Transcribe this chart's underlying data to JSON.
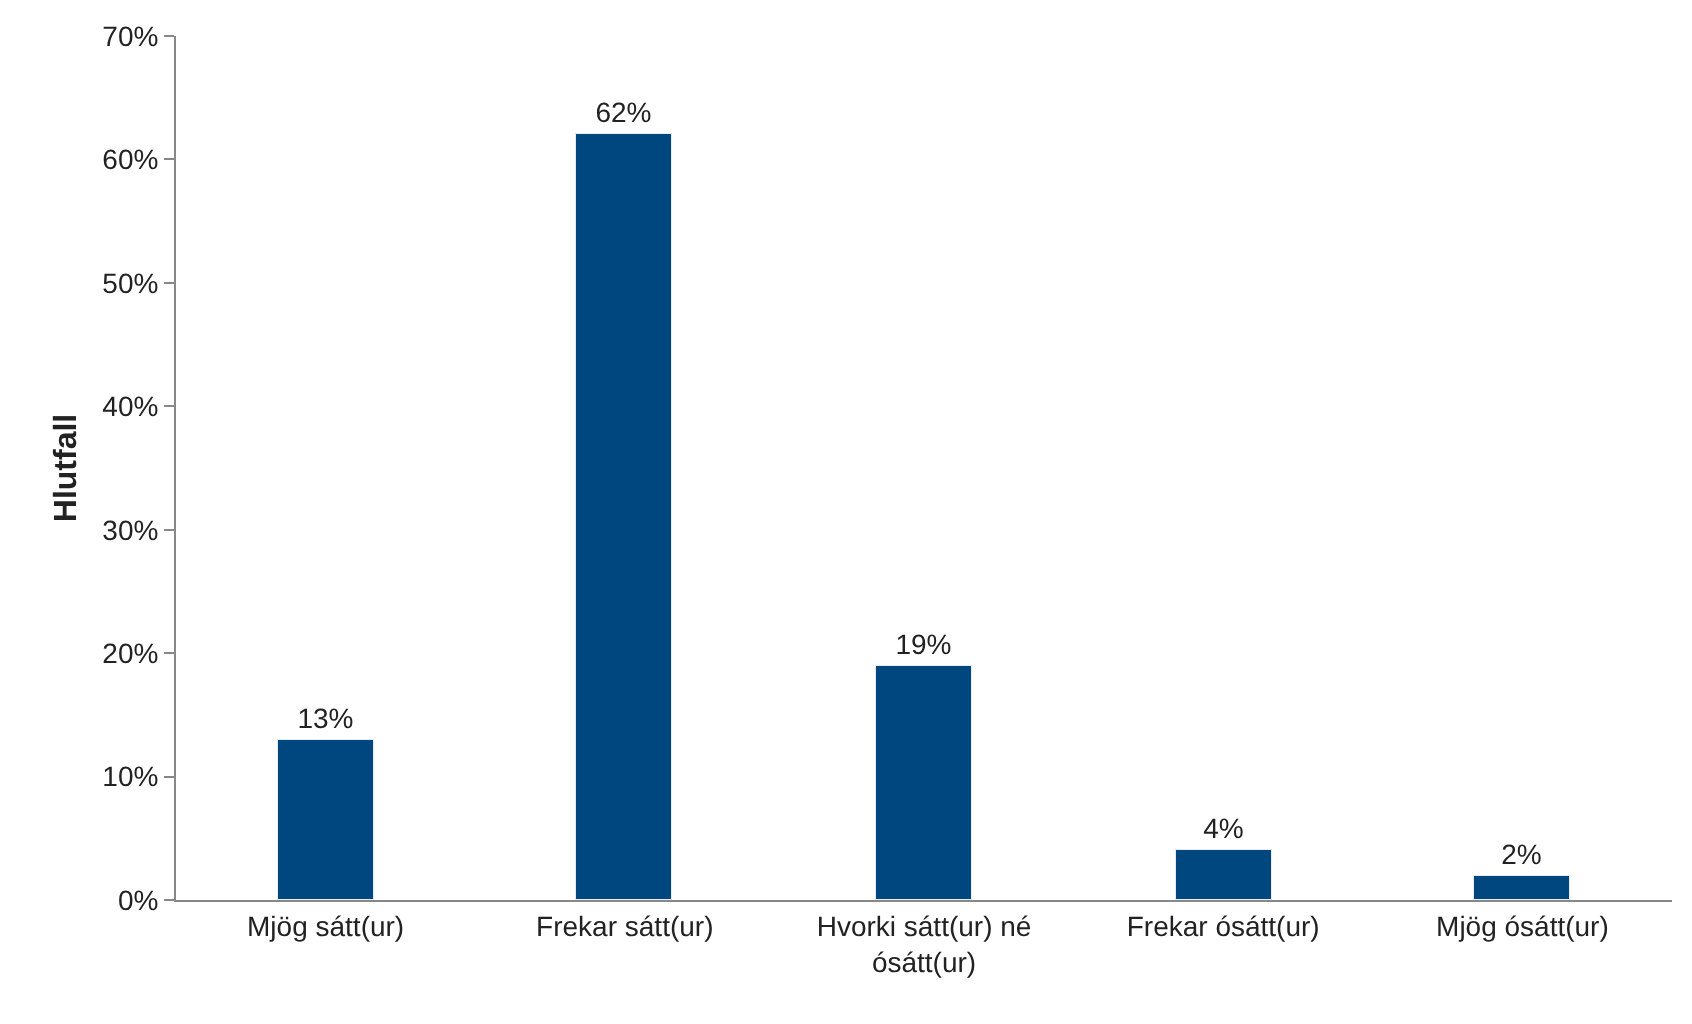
{
  "chart_data": {
    "type": "bar",
    "ylabel": "Hlutfall",
    "categories": [
      "Mjög sátt(ur)",
      "Frekar sátt(ur)",
      "Hvorki sátt(ur) né ósátt(ur)",
      "Frekar ósátt(ur)",
      "Mjög ósátt(ur)"
    ],
    "values": [
      13,
      62,
      19,
      4,
      2
    ],
    "value_labels": [
      "13%",
      "62%",
      "19%",
      "4%",
      "2%"
    ],
    "color": "#00467f",
    "ylim": [
      0,
      70
    ],
    "yticks": [
      {
        "value": 0,
        "label": "0%"
      },
      {
        "value": 10,
        "label": "10%"
      },
      {
        "value": 20,
        "label": "20%"
      },
      {
        "value": 30,
        "label": "30%"
      },
      {
        "value": 40,
        "label": "40%"
      },
      {
        "value": 50,
        "label": "50%"
      },
      {
        "value": 60,
        "label": "60%"
      },
      {
        "value": 70,
        "label": "70%"
      }
    ],
    "legend": false
  }
}
